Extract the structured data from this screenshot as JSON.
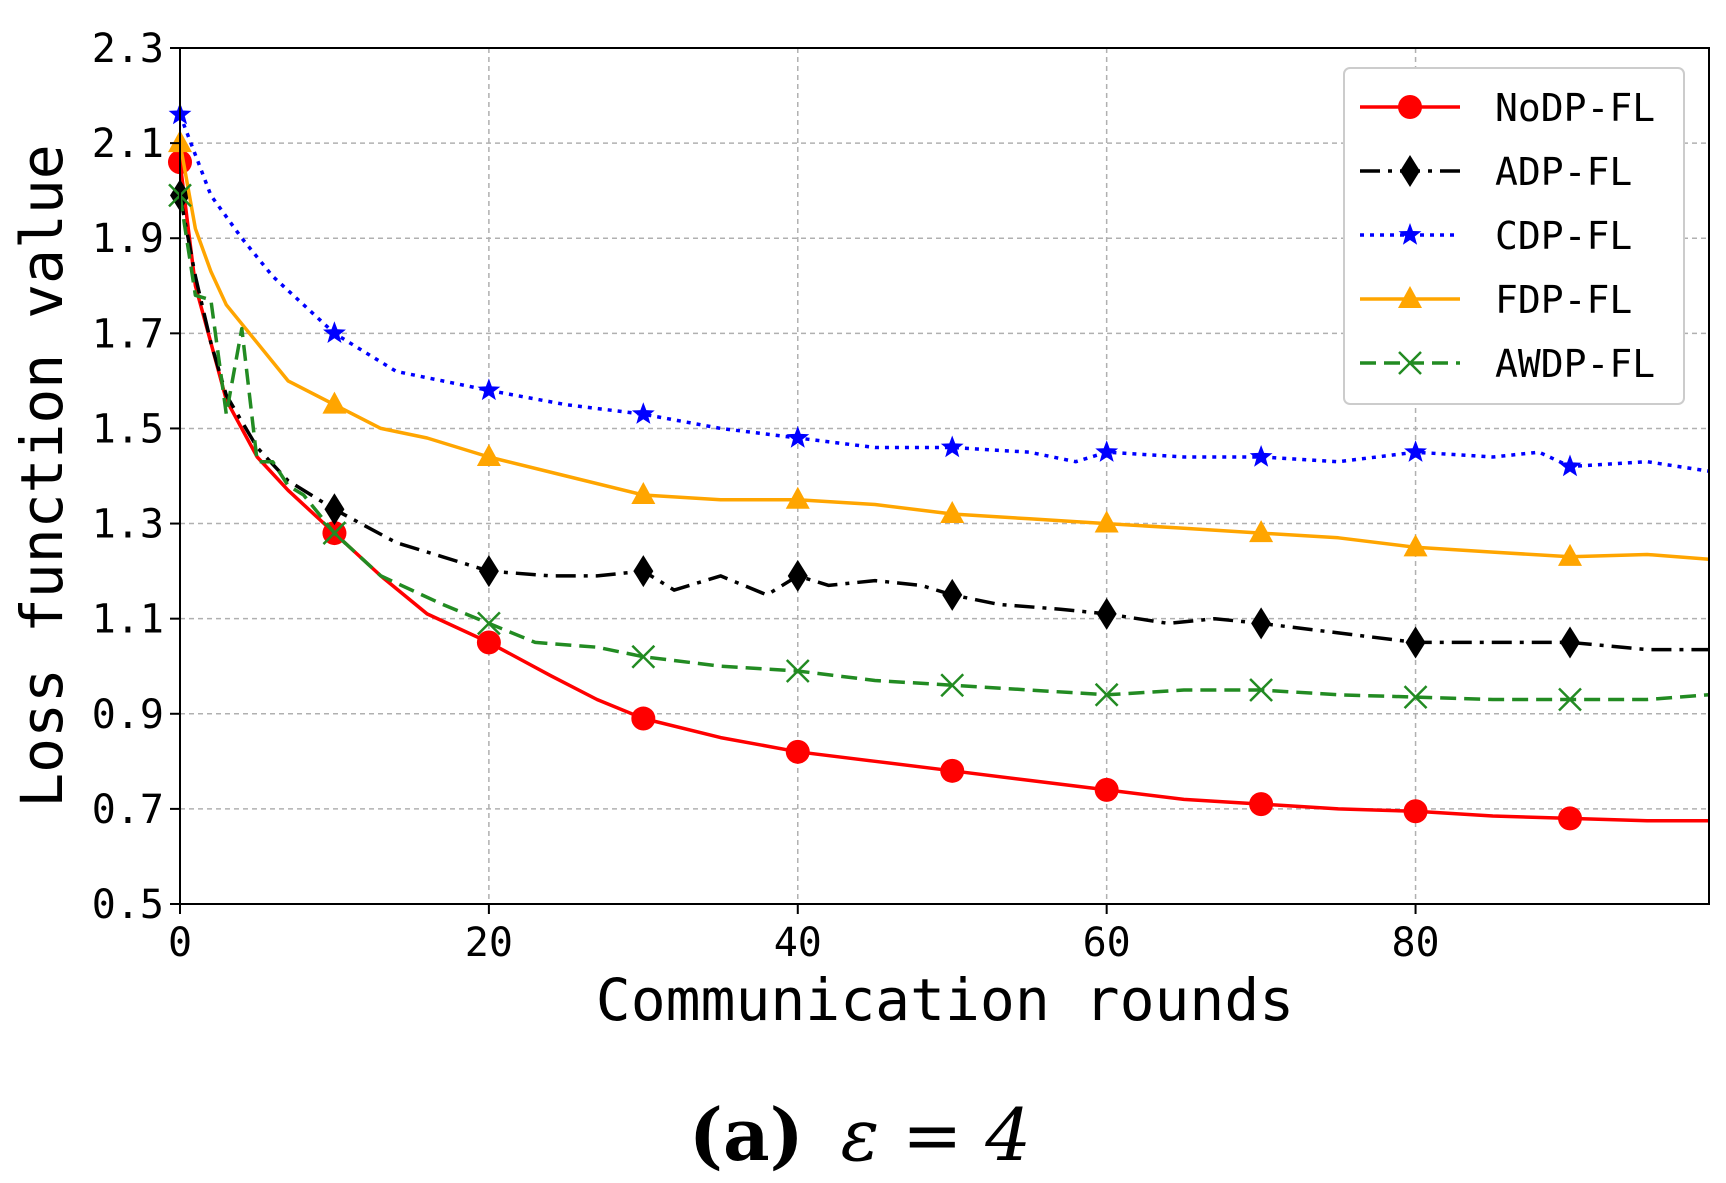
{
  "chart_data": {
    "type": "line",
    "xlabel": "Communication rounds",
    "ylabel": "Loss function value",
    "xlim": [
      0,
      99
    ],
    "ylim": [
      0.5,
      2.3
    ],
    "xticks": [
      0,
      20,
      40,
      60,
      80
    ],
    "yticks": [
      0.5,
      0.7,
      0.9,
      1.1,
      1.3,
      1.5,
      1.7,
      1.9,
      2.1,
      2.3
    ],
    "ytick_labels": [
      "0.5",
      "0.7",
      "0.9",
      "1.1",
      "1.3",
      "1.5",
      "1.7",
      "1.9",
      "2.1",
      "2.3"
    ],
    "xtick_labels": [
      "0",
      "20",
      "40",
      "60",
      "80"
    ],
    "grid": true,
    "legend_position": "top-right",
    "series": [
      {
        "name": "NoDP-FL",
        "color": "#ff0000",
        "style": "solid",
        "marker": "circle",
        "x": [
          0,
          1,
          2,
          3,
          5,
          7,
          10,
          13,
          16,
          20,
          24,
          27,
          30,
          35,
          40,
          45,
          50,
          55,
          60,
          65,
          70,
          75,
          80,
          85,
          90,
          95,
          99
        ],
        "y": [
          2.06,
          1.8,
          1.68,
          1.56,
          1.44,
          1.37,
          1.28,
          1.19,
          1.11,
          1.05,
          0.98,
          0.93,
          0.89,
          0.85,
          0.82,
          0.8,
          0.78,
          0.76,
          0.74,
          0.72,
          0.71,
          0.7,
          0.695,
          0.685,
          0.68,
          0.675,
          0.675
        ]
      },
      {
        "name": "ADP-FL",
        "color": "#000000",
        "style": "dashdot",
        "marker": "diamond",
        "x": [
          0,
          1,
          2,
          3,
          5,
          7,
          10,
          14,
          17,
          20,
          24,
          27,
          30,
          32,
          35,
          38,
          40,
          42,
          45,
          48,
          50,
          53,
          57,
          60,
          64,
          67,
          70,
          75,
          80,
          85,
          90,
          95,
          99
        ],
        "y": [
          1.99,
          1.82,
          1.68,
          1.57,
          1.46,
          1.39,
          1.33,
          1.26,
          1.23,
          1.2,
          1.19,
          1.19,
          1.2,
          1.16,
          1.19,
          1.15,
          1.19,
          1.17,
          1.18,
          1.17,
          1.15,
          1.13,
          1.12,
          1.11,
          1.09,
          1.1,
          1.09,
          1.07,
          1.05,
          1.05,
          1.05,
          1.035,
          1.035
        ]
      },
      {
        "name": "CDP-FL",
        "color": "#0000ff",
        "style": "dotted",
        "marker": "star",
        "x": [
          0,
          2,
          4,
          6,
          8,
          10,
          12,
          14,
          17,
          20,
          25,
          30,
          35,
          40,
          45,
          50,
          55,
          58,
          60,
          65,
          70,
          75,
          80,
          85,
          88,
          90,
          95,
          99
        ],
        "y": [
          2.16,
          1.99,
          1.9,
          1.82,
          1.76,
          1.7,
          1.66,
          1.62,
          1.6,
          1.58,
          1.55,
          1.53,
          1.5,
          1.48,
          1.46,
          1.46,
          1.45,
          1.43,
          1.45,
          1.44,
          1.44,
          1.43,
          1.45,
          1.44,
          1.45,
          1.42,
          1.43,
          1.41
        ]
      },
      {
        "name": "FDP-FL",
        "color": "#ffa500",
        "style": "solid",
        "marker": "triangle",
        "x": [
          0,
          1,
          2,
          3,
          5,
          7,
          10,
          13,
          16,
          20,
          25,
          30,
          35,
          40,
          45,
          50,
          55,
          60,
          65,
          70,
          75,
          80,
          85,
          90,
          95,
          99
        ],
        "y": [
          2.1,
          1.92,
          1.83,
          1.76,
          1.68,
          1.6,
          1.55,
          1.5,
          1.48,
          1.44,
          1.4,
          1.36,
          1.35,
          1.35,
          1.34,
          1.32,
          1.31,
          1.3,
          1.29,
          1.28,
          1.27,
          1.25,
          1.24,
          1.23,
          1.235,
          1.225
        ]
      },
      {
        "name": "AWDP-FL",
        "color": "#228b22",
        "style": "dashed",
        "marker": "x",
        "x": [
          0,
          1,
          2,
          3,
          4,
          5,
          6,
          7,
          8,
          10,
          13,
          17,
          20,
          23,
          27,
          30,
          35,
          40,
          45,
          50,
          55,
          60,
          65,
          70,
          75,
          80,
          85,
          90,
          95,
          99
        ],
        "y": [
          1.99,
          1.78,
          1.77,
          1.53,
          1.71,
          1.43,
          1.43,
          1.38,
          1.36,
          1.28,
          1.19,
          1.13,
          1.09,
          1.05,
          1.04,
          1.02,
          1.0,
          0.99,
          0.97,
          0.96,
          0.95,
          0.94,
          0.95,
          0.95,
          0.94,
          0.935,
          0.93,
          0.93,
          0.93,
          0.94
        ]
      }
    ]
  },
  "caption": {
    "label": "(a)",
    "formula": "ε = 4"
  }
}
